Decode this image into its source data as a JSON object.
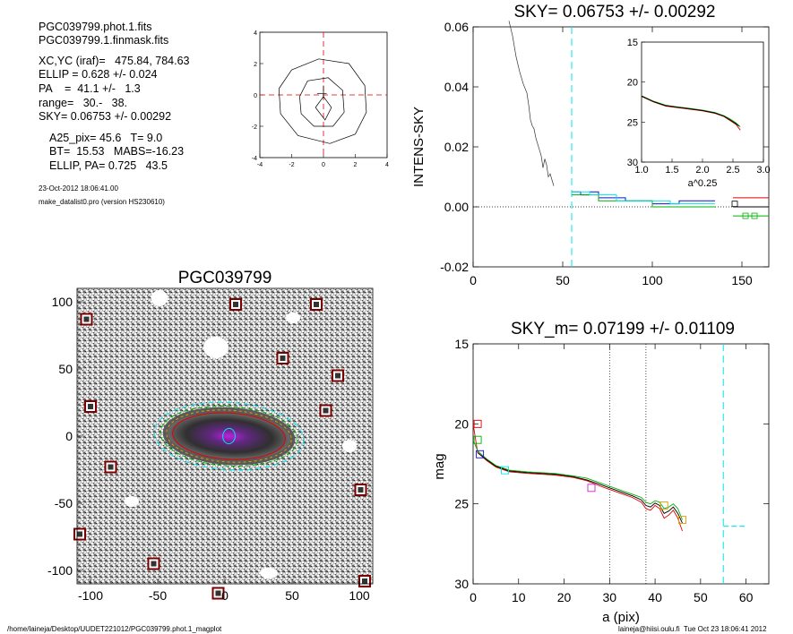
{
  "info": {
    "lines_a": [
      "PGC039799.phot.1.fits",
      "PGC039799.1.finmask.fits"
    ],
    "lines_b": [
      "XC,YC (iraf)=   475.84, 784.63",
      "ELLIP = 0.628 +/- 0.024",
      "PA    =  41.1 +/-   1.3",
      "range=   30.-   38.",
      "SKY= 0.06753 +/- 0.00292"
    ],
    "lines_c": [
      "A25_pix= 45.6   T= 9.0",
      "BT=  15.53   MABS=-16.23",
      "ELLIP, PA= 0.725   43.5"
    ],
    "date": "23-Oct-2012 18:06:41.00",
    "program": "make_datalist0.pro (version HS230610)"
  },
  "footer": {
    "path": "/home/laineja/Desktop/UUDET221012/PGC039799.phot.1_magplot",
    "user": "laineja@hiisi.oulu.fi  Tue Oct 23 18:06:41 2012"
  },
  "colors": {
    "cyan": "#00e5ee",
    "red": "#e00000",
    "green": "#00b000",
    "blue": "#1010d0",
    "magenta": "#d020d0",
    "orange": "#e0a000"
  },
  "chart_data": [
    {
      "type": "line",
      "id": "contour_plot",
      "title": "",
      "xlim": [
        -4,
        4
      ],
      "ylim": [
        -4,
        4
      ],
      "x_ticks": [
        -4,
        -2,
        0,
        2,
        4
      ],
      "y_ticks": [
        -4,
        -2,
        0,
        2,
        4
      ],
      "crosshair": {
        "x": 0,
        "y": 0
      },
      "series": [
        {
          "values": [
            [
              -2.8,
              0.4
            ],
            [
              -2.0,
              1.6
            ],
            [
              -0.3,
              2.3
            ],
            [
              1.6,
              2.0
            ],
            [
              2.6,
              0.6
            ],
            [
              2.7,
              -1.1
            ],
            [
              2.0,
              -2.5
            ],
            [
              0.4,
              -3.1
            ],
            [
              -1.6,
              -2.6
            ],
            [
              -2.7,
              -1.2
            ],
            [
              -2.8,
              0.4
            ]
          ]
        },
        {
          "values": [
            [
              -1.5,
              -0.1
            ],
            [
              -1.0,
              0.9
            ],
            [
              0.3,
              1.1
            ],
            [
              1.2,
              0.3
            ],
            [
              1.3,
              -1.1
            ],
            [
              0.6,
              -2.0
            ],
            [
              -0.6,
              -2.0
            ],
            [
              -1.4,
              -1.2
            ],
            [
              -1.5,
              -0.1
            ]
          ]
        },
        {
          "values": [
            [
              -0.5,
              -0.8
            ],
            [
              0.0,
              -0.1
            ],
            [
              0.5,
              -0.8
            ],
            [
              0.1,
              -1.6
            ],
            [
              -0.5,
              -0.8
            ]
          ]
        },
        {
          "values": [
            [
              -0.4,
              0.1
            ],
            [
              0.2,
              0.1
            ]
          ]
        },
        {
          "values": [
            [
              0.0,
              -0.2
            ],
            [
              0.0,
              0.6
            ]
          ]
        }
      ]
    },
    {
      "type": "line",
      "id": "intens_sky",
      "title": "SKY= 0.06753 +/- 0.00292",
      "ylabel": "INTENS-SKY",
      "xlim": [
        0,
        165
      ],
      "ylim": [
        -0.02,
        0.06
      ],
      "x_ticks": [
        0,
        50,
        100,
        150
      ],
      "y_ticks": [
        -0.02,
        0.0,
        0.02,
        0.04,
        0.06
      ],
      "y_tick_labels": [
        "-0.02",
        "0.00",
        "0.02",
        "0.04",
        "0.06"
      ],
      "sky_marker_x": 55,
      "profile": [
        [
          20,
          0.062
        ],
        [
          22,
          0.057
        ],
        [
          24,
          0.05
        ],
        [
          26,
          0.045
        ],
        [
          28,
          0.041
        ],
        [
          30,
          0.038
        ],
        [
          31,
          0.034
        ],
        [
          32,
          0.029
        ],
        [
          33,
          0.027
        ],
        [
          34,
          0.026
        ],
        [
          35,
          0.023
        ],
        [
          36,
          0.021
        ],
        [
          37,
          0.019
        ],
        [
          38,
          0.017
        ],
        [
          39,
          0.013
        ],
        [
          40,
          0.016
        ],
        [
          41,
          0.014
        ],
        [
          42,
          0.01
        ],
        [
          43,
          0.011
        ],
        [
          44,
          0.009
        ],
        [
          45,
          0.007
        ]
      ],
      "series": [
        {
          "color": "blue",
          "values": [
            [
              55,
              0.005
            ],
            [
              60,
              0.005
            ],
            [
              60,
              0.004
            ],
            [
              65,
              0.004
            ],
            [
              65,
              0.005
            ],
            [
              70,
              0.005
            ],
            [
              70,
              0.003
            ],
            [
              85,
              0.003
            ],
            [
              85,
              0.002
            ],
            [
              100,
              0.002
            ],
            [
              100,
              0.001
            ],
            [
              115,
              0.001
            ],
            [
              115,
              0.002
            ],
            [
              135,
              0.002
            ]
          ]
        },
        {
          "color": "green",
          "values": [
            [
              55,
              0.004
            ],
            [
              70,
              0.004
            ],
            [
              70,
              0.002
            ],
            [
              100,
              0.002
            ],
            [
              100,
              0.0
            ],
            [
              135,
              0.0
            ]
          ]
        },
        {
          "color": "cyan",
          "values": [
            [
              55,
              0.005
            ],
            [
              65,
              0.005
            ],
            [
              65,
              0.004
            ],
            [
              80,
              0.004
            ],
            [
              80,
              0.002
            ],
            [
              110,
              0.002
            ],
            [
              110,
              0.001
            ],
            [
              135,
              0.001
            ]
          ]
        },
        {
          "color": "red",
          "values": [
            [
              145,
              0.003
            ],
            [
              165,
              0.003
            ]
          ]
        },
        {
          "color": "black",
          "values": [
            [
              145,
              0.0
            ],
            [
              165,
              0.0
            ]
          ]
        },
        {
          "color": "green",
          "values": [
            [
              145,
              -0.003
            ],
            [
              165,
              -0.003
            ]
          ]
        }
      ],
      "markers": [
        {
          "x": 146,
          "y": 0.001,
          "color": "black"
        },
        {
          "x": 152,
          "y": -0.003,
          "color": "green"
        },
        {
          "x": 157,
          "y": -0.003,
          "color": "green"
        }
      ],
      "inset": {
        "xlabel": "a^0.25",
        "xlim": [
          1.0,
          3.0
        ],
        "ylim": [
          15,
          30
        ],
        "x_ticks": [
          1.0,
          1.5,
          2.0,
          2.5,
          3.0
        ],
        "x_tick_labels": [
          "1.0",
          "1.5",
          "2.0",
          "2.5",
          "3.0"
        ],
        "y_ticks": [
          15,
          20,
          25,
          30
        ],
        "series": [
          {
            "color": "red",
            "values": [
              [
                1.0,
                21.8
              ],
              [
                1.2,
                22.5
              ],
              [
                1.4,
                23.0
              ],
              [
                1.6,
                23.2
              ],
              [
                1.8,
                23.4
              ],
              [
                2.0,
                23.6
              ],
              [
                2.2,
                23.9
              ],
              [
                2.35,
                24.3
              ],
              [
                2.45,
                24.8
              ],
              [
                2.55,
                25.3
              ],
              [
                2.62,
                26.0
              ]
            ]
          },
          {
            "color": "green",
            "values": [
              [
                1.0,
                21.7
              ],
              [
                1.2,
                22.4
              ],
              [
                1.4,
                22.9
              ],
              [
                1.6,
                23.1
              ],
              [
                1.8,
                23.3
              ],
              [
                2.0,
                23.5
              ],
              [
                2.2,
                23.8
              ],
              [
                2.35,
                24.2
              ],
              [
                2.45,
                24.6
              ],
              [
                2.55,
                25.1
              ],
              [
                2.62,
                25.6
              ]
            ]
          },
          {
            "color": "black",
            "values": [
              [
                1.0,
                21.75
              ],
              [
                1.2,
                22.45
              ],
              [
                1.4,
                22.95
              ],
              [
                1.6,
                23.15
              ],
              [
                1.8,
                23.35
              ],
              [
                2.0,
                23.55
              ],
              [
                2.2,
                23.85
              ],
              [
                2.35,
                24.25
              ],
              [
                2.45,
                24.7
              ],
              [
                2.55,
                25.2
              ],
              [
                2.6,
                25.5
              ]
            ]
          }
        ]
      }
    },
    {
      "type": "scatter",
      "id": "galaxy_image",
      "title": "PGC039799",
      "xlim": [
        -110,
        110
      ],
      "ylim": [
        -110,
        110
      ],
      "x_ticks": [
        -100,
        -50,
        0,
        50,
        100
      ],
      "y_ticks": [
        -100,
        -50,
        0,
        50,
        100
      ],
      "masked_stars": [
        [
          -103,
          87
        ],
        [
          8,
          98
        ],
        [
          68,
          98
        ],
        [
          -100,
          22
        ],
        [
          43,
          58
        ],
        [
          84,
          45
        ],
        [
          75,
          19
        ],
        [
          -85,
          -23
        ],
        [
          101,
          -40
        ],
        [
          -108,
          -73
        ],
        [
          -53,
          -95
        ],
        [
          -5,
          -117
        ],
        [
          104,
          -108
        ]
      ],
      "galaxy": {
        "cx": 3,
        "cy": 0,
        "a": 45.6,
        "b": 14.3,
        "pa_deg": 43.5
      }
    },
    {
      "type": "line",
      "id": "mag_profile",
      "title": "SKY_m=  0.07199 +/- 0.01109",
      "xlabel": "a (pix)",
      "ylabel": "mag",
      "xlim": [
        0,
        65
      ],
      "ylim": [
        30,
        15
      ],
      "x_ticks": [
        0,
        10,
        20,
        30,
        40,
        50,
        60
      ],
      "y_ticks": [
        15,
        20,
        25,
        30
      ],
      "range_lines": [
        30,
        38
      ],
      "sky_marker_x": 55,
      "series": [
        {
          "color": "red",
          "values": [
            [
              0,
              20.0
            ],
            [
              1,
              21.8
            ],
            [
              3,
              22.3
            ],
            [
              5,
              22.7
            ],
            [
              8,
              23.0
            ],
            [
              12,
              23.1
            ],
            [
              18,
              23.2
            ],
            [
              22,
              23.35
            ],
            [
              25,
              23.55
            ],
            [
              28,
              23.9
            ],
            [
              30,
              24.1
            ],
            [
              33,
              24.4
            ],
            [
              35,
              24.6
            ],
            [
              37,
              24.9
            ],
            [
              38,
              25.3
            ],
            [
              39,
              25.4
            ],
            [
              40,
              25.1
            ],
            [
              41,
              25.3
            ],
            [
              42,
              25.9
            ],
            [
              43,
              25.7
            ],
            [
              44,
              25.4
            ],
            [
              45,
              25.9
            ],
            [
              46,
              26.7
            ]
          ]
        },
        {
          "color": "green",
          "values": [
            [
              0,
              21.0
            ],
            [
              1,
              21.7
            ],
            [
              3,
              22.2
            ],
            [
              5,
              22.6
            ],
            [
              8,
              22.9
            ],
            [
              12,
              23.0
            ],
            [
              18,
              23.1
            ],
            [
              22,
              23.25
            ],
            [
              25,
              23.4
            ],
            [
              28,
              23.7
            ],
            [
              30,
              23.9
            ],
            [
              33,
              24.2
            ],
            [
              35,
              24.4
            ],
            [
              37,
              24.6
            ],
            [
              38,
              24.9
            ],
            [
              39,
              25.0
            ],
            [
              40,
              24.8
            ],
            [
              41,
              24.9
            ],
            [
              42,
              25.3
            ],
            [
              43,
              25.2
            ],
            [
              44,
              25.0
            ],
            [
              45,
              25.3
            ],
            [
              46,
              26.0
            ]
          ]
        },
        {
          "color": "black",
          "values": [
            [
              1,
              21.8
            ],
            [
              3,
              22.25
            ],
            [
              5,
              22.65
            ],
            [
              8,
              22.95
            ],
            [
              12,
              23.05
            ],
            [
              18,
              23.15
            ],
            [
              22,
              23.3
            ],
            [
              25,
              23.5
            ],
            [
              28,
              23.8
            ],
            [
              30,
              24.0
            ],
            [
              33,
              24.3
            ],
            [
              35,
              24.5
            ],
            [
              37,
              24.75
            ],
            [
              38,
              25.1
            ],
            [
              39,
              25.2
            ],
            [
              40,
              24.95
            ],
            [
              41,
              25.1
            ],
            [
              42,
              25.6
            ],
            [
              43,
              25.45
            ],
            [
              44,
              25.2
            ],
            [
              45,
              25.6
            ],
            [
              46,
              26.2
            ]
          ]
        }
      ],
      "markers": [
        {
          "x": 1,
          "y": 20.0,
          "color": "red"
        },
        {
          "x": 1,
          "y": 21.0,
          "color": "green"
        },
        {
          "x": 1.5,
          "y": 21.9,
          "color": "blue"
        },
        {
          "x": 7,
          "y": 22.9,
          "color": "cyan"
        },
        {
          "x": 26,
          "y": 24.0,
          "color": "magenta"
        },
        {
          "x": 42,
          "y": 25.1,
          "color": "orange"
        },
        {
          "x": 46,
          "y": 26.0,
          "color": "orange"
        }
      ],
      "sky_segment": [
        [
          55,
          26.4
        ],
        [
          60,
          26.4
        ]
      ]
    }
  ]
}
